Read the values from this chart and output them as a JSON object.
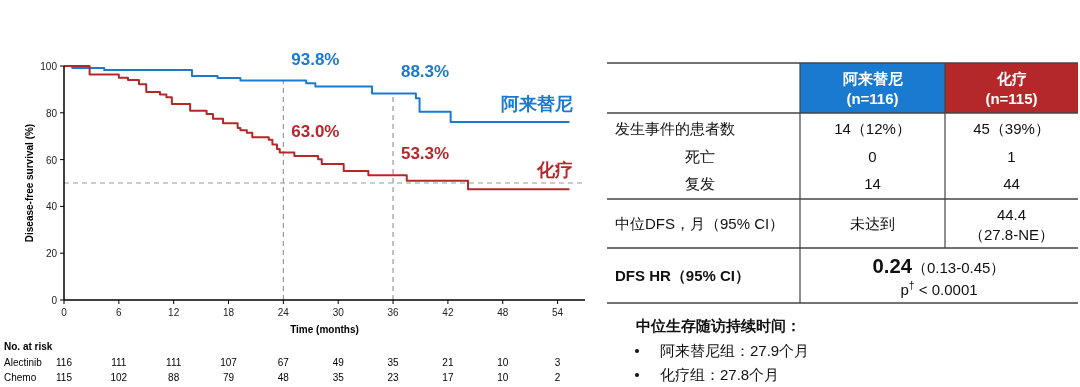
{
  "chart_data": [
    {
      "type": "step",
      "xlabel": "Time (months)",
      "ylabel": "Disease-free survival (%)",
      "xlim": [
        0,
        57
      ],
      "xticks": [
        0,
        6,
        12,
        18,
        24,
        30,
        36,
        42,
        48,
        54
      ],
      "ylim": [
        0,
        100
      ],
      "yticks": [
        0,
        20,
        40,
        60,
        80,
        100
      ],
      "legend": false,
      "series": [
        {
          "name": "阿来替尼",
          "color": "#1a7ad0",
          "x": [
            0,
            0.9,
            4.4,
            14,
            16.8,
            19.3,
            26.5,
            27.5,
            33.7,
            38.5,
            38.9,
            42.3,
            55.3
          ],
          "values": [
            100,
            99.1,
            98.3,
            95.7,
            94.9,
            93.8,
            92.6,
            91.2,
            88.3,
            86.2,
            80.5,
            76.1,
            76.1
          ]
        },
        {
          "name": "化疗",
          "color": "#b5282a",
          "x": [
            0,
            2.8,
            6,
            7,
            8.2,
            9,
            10.5,
            11.2,
            11.8,
            13.8,
            15.6,
            16.3,
            17.4,
            19,
            19.3,
            20,
            20.6,
            22.4,
            22.8,
            23.3,
            23.6,
            25.2,
            27.8,
            28.2,
            30.6,
            33.3,
            37.5,
            44.2,
            55.3
          ],
          "values": [
            100,
            96.4,
            95,
            94,
            92.2,
            88.9,
            87.8,
            86.6,
            83.8,
            80.9,
            79.5,
            77.5,
            75.5,
            73.5,
            72.5,
            71.5,
            69.5,
            68.5,
            66.5,
            64.5,
            63,
            61.5,
            60.1,
            58.1,
            55.1,
            53.3,
            51,
            47.3,
            47.3
          ]
        }
      ],
      "ref_lines": [
        {
          "axis": "x",
          "value": 24,
          "color": "#999999",
          "line_style": "dashed"
        },
        {
          "axis": "x",
          "value": 36,
          "color": "#999999",
          "line_style": "dashed"
        },
        {
          "axis": "y",
          "value": 50,
          "color": "#999999",
          "line_style": "dashed"
        }
      ],
      "annotations": [
        "93.8%",
        "88.3%",
        "63.0%",
        "53.3%"
      ]
    },
    {
      "type": "other",
      "annotations": [
        "No. at risk",
        "Alectinib",
        "116",
        "111",
        "111",
        "107",
        "67",
        "49",
        "35",
        "21",
        "10",
        "3",
        "Chemo",
        "115",
        "102",
        "88",
        "79",
        "48",
        "35",
        "23",
        "17",
        "10",
        "2"
      ]
    },
    {
      "type": "other",
      "annotations": [
        "阿来替尼",
        "(n=116)",
        "化疗",
        "(n=115)",
        "发生事件的患者数",
        "14（12%）",
        "45（39%）",
        "死亡",
        "0",
        "1",
        "复发",
        "14",
        "44",
        "中位DFS，月（95% CI）",
        "未达到",
        "44.4",
        "（27.8-NE）",
        "DFS HR（95% CI）",
        "**0.24**（0.13-0.45）",
        "p$^{†}$ < 0.0001",
        "中位生存随访持续时间：",
        "阿来替尼组：27.9个月",
        "化疗组：27.8个月"
      ]
    }
  ]
}
